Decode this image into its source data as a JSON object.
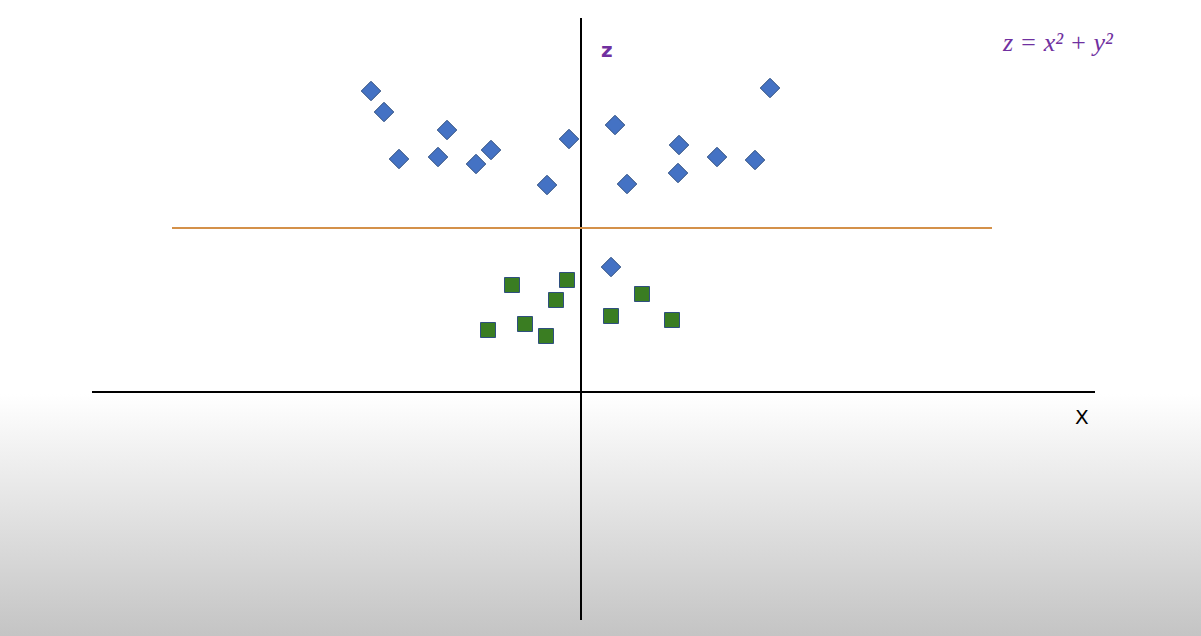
{
  "chart_data": {
    "type": "scatter",
    "title": "z = x² + y²",
    "x_label": "X",
    "y_label": "z",
    "xlim": [
      -4.89,
      5.14
    ],
    "ylim": [
      -2.28,
      3.74
    ],
    "xticks": [],
    "yticks": [],
    "tick_labels": false,
    "grid": false,
    "series": [
      {
        "type": "scatter",
        "marker": "diamond",
        "color": "#4472c4",
        "x": [
          -2.1,
          -1.97,
          -1.82,
          -1.43,
          -1.34,
          -1.05,
          -0.9,
          -0.34,
          -0.12,
          0.34,
          0.46,
          0.98,
          0.97,
          1.36,
          1.74,
          1.89,
          0.3
        ],
        "values": [
          3.01,
          2.8,
          2.33,
          2.35,
          2.62,
          2.28,
          2.42,
          2.07,
          2.53,
          2.67,
          2.08,
          2.47,
          2.19,
          2.35,
          2.32,
          3.04,
          1.25
        ]
      },
      {
        "type": "scatter",
        "marker": "square",
        "color": "#3a7d22",
        "x": [
          -0.69,
          -0.14,
          -0.25,
          -0.93,
          -0.56,
          -0.35,
          0.3,
          0.61,
          0.91
        ],
        "values": [
          1.07,
          1.12,
          0.92,
          0.62,
          0.68,
          0.56,
          0.76,
          0.98,
          0.72
        ]
      },
      {
        "type": "line",
        "line_style": "solid",
        "color": "#d4914a",
        "x": [
          -4.09,
          4.11
        ],
        "values": [
          1.64,
          1.64
        ]
      }
    ]
  }
}
